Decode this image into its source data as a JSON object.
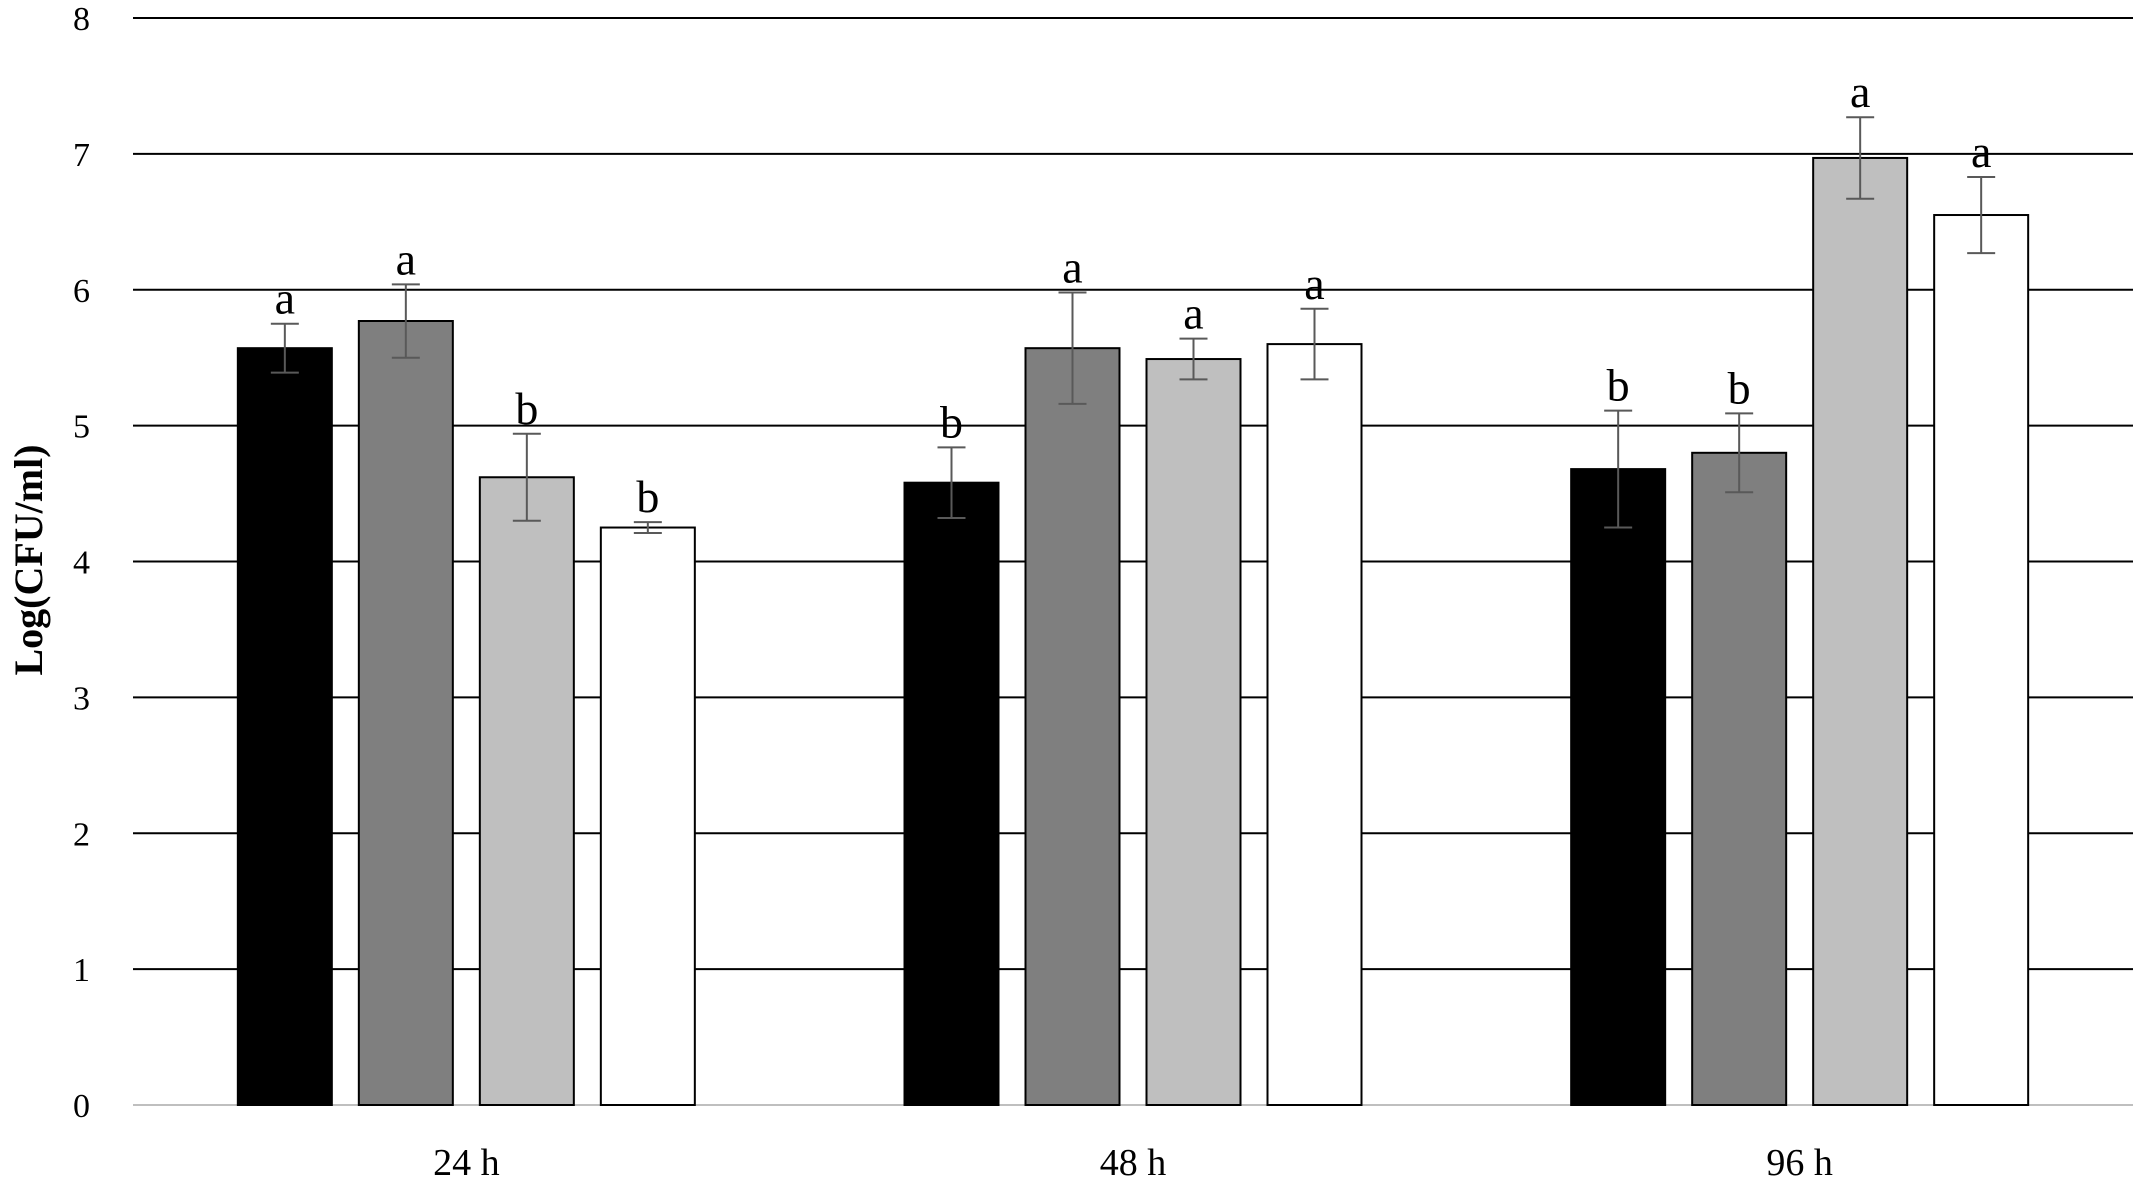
{
  "chart_data": {
    "type": "bar",
    "title": "",
    "xlabel": "",
    "ylabel": "Log(CFU/ml)",
    "ylim": [
      0,
      8
    ],
    "yticks": [
      0,
      1,
      2,
      3,
      4,
      5,
      6,
      7,
      8
    ],
    "grid": true,
    "legend": "none",
    "categories": [
      "24 h",
      "48 h",
      "96 h"
    ],
    "series": [
      {
        "color": "#000000",
        "values": [
          5.57,
          4.58,
          4.68
        ],
        "errors": [
          0.18,
          0.26,
          0.43
        ],
        "labels": [
          "a",
          "b",
          "b"
        ]
      },
      {
        "color": "#7f7f7f",
        "values": [
          5.77,
          5.57,
          4.8
        ],
        "errors": [
          0.27,
          0.41,
          0.29
        ],
        "labels": [
          "a",
          "a",
          "b"
        ]
      },
      {
        "color": "#bfbfbf",
        "values": [
          4.62,
          5.49,
          6.97
        ],
        "errors": [
          0.32,
          0.15,
          0.3
        ],
        "labels": [
          "b",
          "a",
          "a"
        ]
      },
      {
        "color": "#ffffff",
        "values": [
          4.25,
          5.6,
          6.55
        ],
        "errors": [
          0.04,
          0.26,
          0.28
        ],
        "labels": [
          "b",
          "a",
          "a"
        ]
      }
    ]
  }
}
